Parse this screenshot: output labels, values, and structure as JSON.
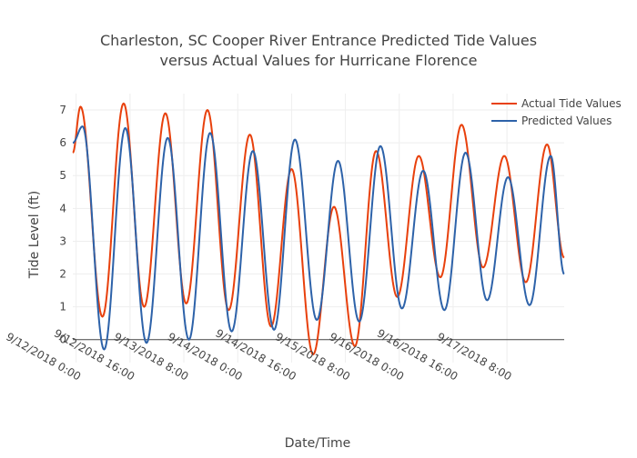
{
  "chart_data": {
    "type": "line",
    "title_line1": "Charleston, SC Cooper River Entrance Predicted Tide Values",
    "title_line2": "versus Actual Values for Hurricane Florence",
    "xlabel": "Date/Time",
    "ylabel": "Tide Level (ft)",
    "ylim": [
      -0.7,
      7.5
    ],
    "y_ticks": [
      0,
      1,
      2,
      3,
      4,
      5,
      6,
      7
    ],
    "x_tick_labels": [
      "9/12/2018 0:00",
      "9/12/2018 16:00",
      "9/13/2018 8:00",
      "9/14/2018 0:00",
      "9/14/2018 16:00",
      "9/15/2018 8:00",
      "9/16/2018 0:00",
      "9/16/2018 16:00",
      "9/17/2018 8:00"
    ],
    "x_tick_hours": [
      0,
      16,
      32,
      48,
      64,
      80,
      96,
      112,
      128
    ],
    "x_range_hours": [
      -1,
      145
    ],
    "x_unit_note": "",
    "grid": true,
    "legend_position": "top-right",
    "series": [
      {
        "name": "Actual Tide Values",
        "color": "#e8400c",
        "extrema": [
          [
            -1,
            5.7
          ],
          [
            1.3,
            7.1
          ],
          [
            7.8,
            0.7
          ],
          [
            14.1,
            7.2
          ],
          [
            20.2,
            1.0
          ],
          [
            26.5,
            6.9
          ],
          [
            32.7,
            1.1
          ],
          [
            39.0,
            7.0
          ],
          [
            45.3,
            0.9
          ],
          [
            51.6,
            6.25
          ],
          [
            57.9,
            0.4
          ],
          [
            64.0,
            5.2
          ],
          [
            70.4,
            -0.45
          ],
          [
            76.6,
            4.05
          ],
          [
            82.8,
            -0.2
          ],
          [
            89.1,
            5.75
          ],
          [
            95.4,
            1.3
          ],
          [
            101.8,
            5.6
          ],
          [
            108.2,
            1.9
          ],
          [
            114.5,
            6.55
          ],
          [
            120.9,
            2.2
          ],
          [
            127.2,
            5.6
          ],
          [
            133.6,
            1.75
          ],
          [
            139.9,
            5.95
          ],
          [
            145,
            2.5
          ]
        ]
      },
      {
        "name": "Predicted Values",
        "color": "#2d62a9",
        "extrema": [
          [
            -1,
            6.0
          ],
          [
            1.9,
            6.5
          ],
          [
            8.3,
            -0.3
          ],
          [
            14.6,
            6.45
          ],
          [
            20.9,
            -0.1
          ],
          [
            27.2,
            6.15
          ],
          [
            33.5,
            0.0
          ],
          [
            39.8,
            6.3
          ],
          [
            46.2,
            0.25
          ],
          [
            52.5,
            5.75
          ],
          [
            58.8,
            0.3
          ],
          [
            65.0,
            6.1
          ],
          [
            71.5,
            0.6
          ],
          [
            77.8,
            5.45
          ],
          [
            84.1,
            0.55
          ],
          [
            90.4,
            5.9
          ],
          [
            96.8,
            0.95
          ],
          [
            103.1,
            5.15
          ],
          [
            109.4,
            0.9
          ],
          [
            115.7,
            5.7
          ],
          [
            122.1,
            1.2
          ],
          [
            128.3,
            4.95
          ],
          [
            134.7,
            1.05
          ],
          [
            141.0,
            5.6
          ],
          [
            145,
            2.0
          ]
        ]
      }
    ]
  }
}
